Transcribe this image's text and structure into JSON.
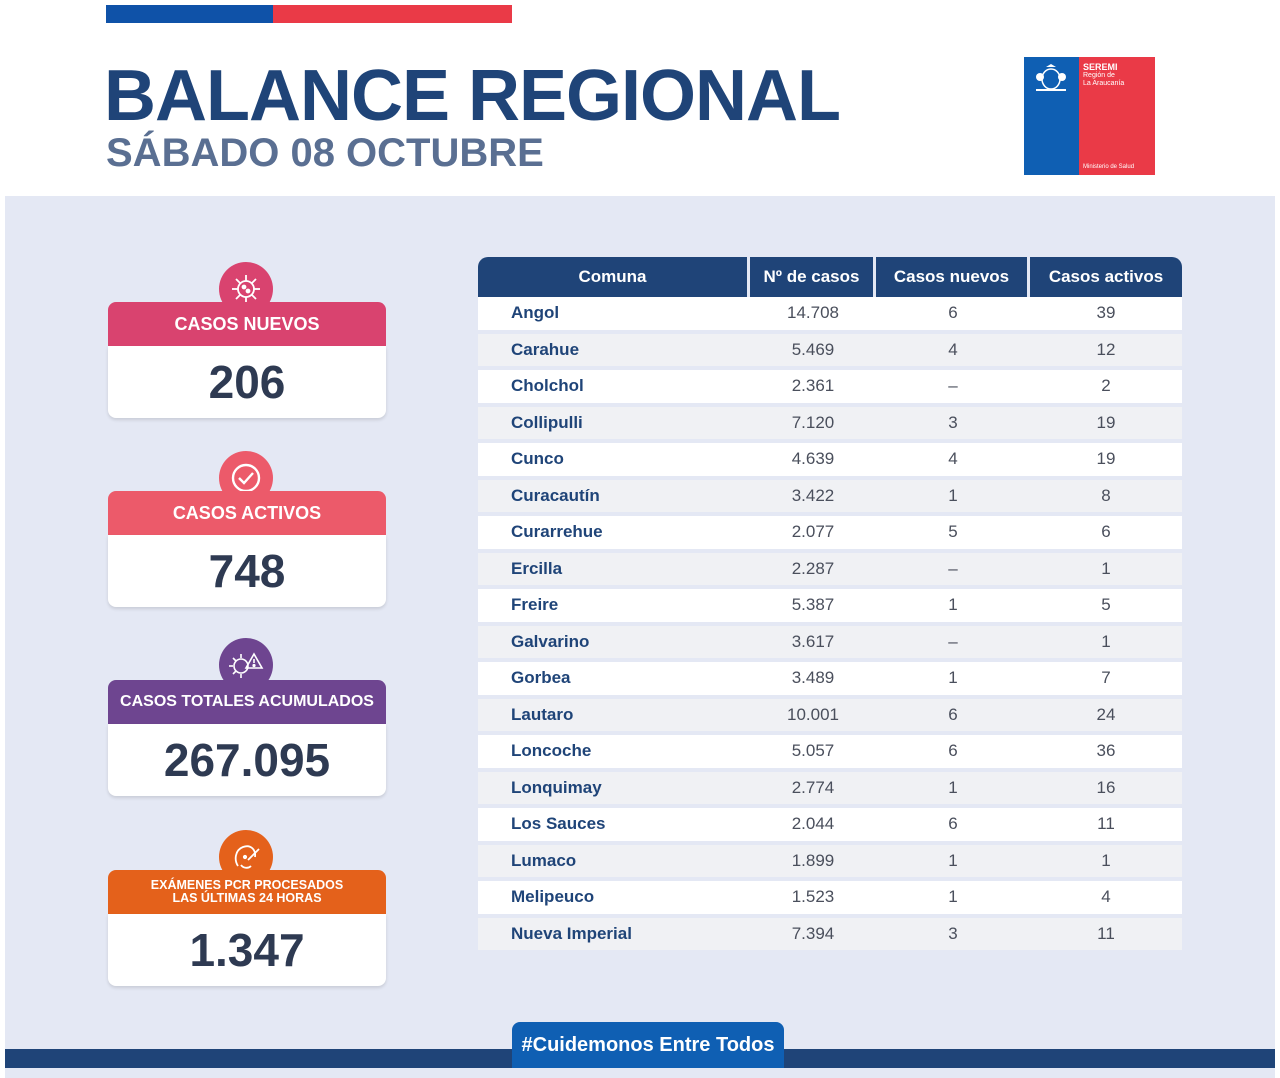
{
  "header": {
    "title": "BALANCE REGIONAL",
    "subtitle": "SÁBADO 08 OCTUBRE",
    "logo": {
      "name": "SEREMI",
      "region_line1": "Región de",
      "region_line2": "La Araucanía",
      "ministry": "Ministerio de Salud"
    }
  },
  "stats": [
    {
      "label": "CASOS NUEVOS",
      "value": "206",
      "color": "#d9436f",
      "icon": "virus-icon"
    },
    {
      "label": "CASOS ACTIVOS",
      "value": "748",
      "color": "#ec5a6a",
      "icon": "check-circle-icon"
    },
    {
      "label": "CASOS TOTALES ACUMULADOS",
      "value": "267.095",
      "color": "#6e4590",
      "icon": "virus-warning-icon"
    },
    {
      "label": "EXÁMENES PCR PROCESADOS LAS ÚLTIMAS 24 HORAS",
      "value": "1.347",
      "color": "#e4611b",
      "icon": "swab-test-icon"
    }
  ],
  "table": {
    "headers": [
      "Comuna",
      "Nº de casos",
      "Casos nuevos",
      "Casos activos"
    ],
    "rows": [
      [
        "Angol",
        "14.708",
        "6",
        "39"
      ],
      [
        "Carahue",
        "5.469",
        "4",
        "12"
      ],
      [
        "Cholchol",
        "2.361",
        "–",
        "2"
      ],
      [
        "Collipulli",
        "7.120",
        "3",
        "19"
      ],
      [
        "Cunco",
        "4.639",
        "4",
        "19"
      ],
      [
        "Curacautín",
        "3.422",
        "1",
        "8"
      ],
      [
        "Curarrehue",
        "2.077",
        "5",
        "6"
      ],
      [
        "Ercilla",
        "2.287",
        "–",
        "1"
      ],
      [
        "Freire",
        "5.387",
        "1",
        "5"
      ],
      [
        "Galvarino",
        "3.617",
        "–",
        "1"
      ],
      [
        "Gorbea",
        "3.489",
        "1",
        "7"
      ],
      [
        "Lautaro",
        "10.001",
        "6",
        "24"
      ],
      [
        "Loncoche",
        "5.057",
        "6",
        "36"
      ],
      [
        "Lonquimay",
        "2.774",
        "1",
        "16"
      ],
      [
        "Los Sauces",
        "2.044",
        "6",
        "11"
      ],
      [
        "Lumaco",
        "1.899",
        "1",
        "1"
      ],
      [
        "Melipeuco",
        "1.523",
        "1",
        "4"
      ],
      [
        "Nueva Imperial",
        "7.394",
        "3",
        "11"
      ]
    ]
  },
  "footer": {
    "hashtag": "#Cuidemonos Entre Todos"
  },
  "colors": {
    "navy": "#1f4478",
    "blue": "#0f52a8",
    "red": "#ea3a47",
    "panel": "#e4e8f4"
  }
}
